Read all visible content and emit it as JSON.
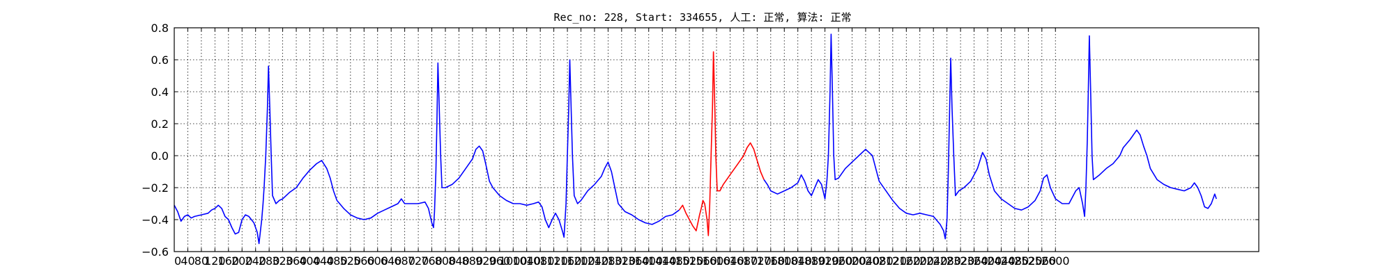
{
  "chart_data": {
    "type": "line",
    "title": "Rec_no: 228, Start: 334655, 人工: 正常, 算法: 正常",
    "xlabel": "",
    "ylabel": "",
    "xlim": [
      0,
      3200
    ],
    "ylim": [
      -0.6,
      0.8
    ],
    "grid": true,
    "yticks": [
      "0.8",
      "0.6",
      "0.4",
      "0.2",
      "0.0",
      "−0.2",
      "−0.4",
      "−0.6"
    ],
    "ytick_values": [
      0.8,
      0.6,
      0.4,
      0.2,
      0.0,
      -0.2,
      -0.4,
      -0.6
    ],
    "xtick_values": [
      0,
      40,
      80,
      120,
      160,
      200,
      240,
      280,
      320,
      360,
      400,
      440,
      480,
      520,
      560,
      600,
      640,
      680,
      720,
      760,
      800,
      840,
      880,
      920,
      960,
      1000,
      1040,
      1080,
      1120,
      1160,
      1200,
      1240,
      1280,
      1320,
      1360,
      1400,
      1440,
      1480,
      1520,
      1560,
      1600,
      1640,
      1680,
      1720,
      1760,
      1800,
      1840,
      1880,
      1920,
      1960,
      2000,
      2040,
      2080,
      2120,
      2160,
      2200,
      2240,
      2280,
      2320,
      2360,
      2400,
      2440,
      2480,
      2520,
      2560,
      2600
    ],
    "series_colors": {
      "main": "#0000ff",
      "highlight": "#ff0000"
    },
    "series": [
      {
        "segment": "before",
        "color": "#0000ff",
        "points": [
          [
            0,
            -0.31
          ],
          [
            10,
            -0.35
          ],
          [
            20,
            -0.41
          ],
          [
            30,
            -0.38
          ],
          [
            40,
            -0.37
          ],
          [
            50,
            -0.39
          ],
          [
            60,
            -0.38
          ],
          [
            80,
            -0.37
          ],
          [
            100,
            -0.36
          ],
          [
            110,
            -0.34
          ],
          [
            120,
            -0.33
          ],
          [
            130,
            -0.31
          ],
          [
            140,
            -0.33
          ],
          [
            150,
            -0.38
          ],
          [
            160,
            -0.4
          ],
          [
            170,
            -0.45
          ],
          [
            180,
            -0.49
          ],
          [
            190,
            -0.48
          ],
          [
            200,
            -0.4
          ],
          [
            210,
            -0.37
          ],
          [
            220,
            -0.38
          ],
          [
            235,
            -0.42
          ],
          [
            245,
            -0.48
          ],
          [
            250,
            -0.55
          ],
          [
            258,
            -0.4
          ],
          [
            262,
            -0.3
          ],
          [
            265,
            -0.2
          ],
          [
            270,
            0.0
          ],
          [
            275,
            0.3
          ],
          [
            278,
            0.56
          ],
          [
            282,
            0.3
          ],
          [
            286,
            0.0
          ],
          [
            290,
            -0.25
          ],
          [
            300,
            -0.3
          ],
          [
            310,
            -0.28
          ],
          [
            320,
            -0.27
          ],
          [
            340,
            -0.23
          ],
          [
            360,
            -0.2
          ],
          [
            380,
            -0.14
          ],
          [
            400,
            -0.09
          ],
          [
            420,
            -0.05
          ],
          [
            435,
            -0.03
          ],
          [
            450,
            -0.08
          ],
          [
            460,
            -0.14
          ],
          [
            470,
            -0.22
          ],
          [
            480,
            -0.28
          ],
          [
            500,
            -0.33
          ],
          [
            520,
            -0.37
          ],
          [
            540,
            -0.39
          ],
          [
            560,
            -0.4
          ],
          [
            580,
            -0.39
          ],
          [
            600,
            -0.36
          ],
          [
            620,
            -0.34
          ],
          [
            640,
            -0.32
          ],
          [
            660,
            -0.3
          ],
          [
            670,
            -0.27
          ],
          [
            680,
            -0.3
          ],
          [
            700,
            -0.3
          ],
          [
            720,
            -0.3
          ],
          [
            740,
            -0.29
          ],
          [
            750,
            -0.33
          ],
          [
            760,
            -0.42
          ],
          [
            765,
            -0.45
          ],
          [
            768,
            -0.35
          ],
          [
            772,
            -0.1
          ],
          [
            775,
            0.2
          ],
          [
            778,
            0.58
          ],
          [
            782,
            0.3
          ],
          [
            786,
            0.0
          ],
          [
            790,
            -0.2
          ],
          [
            800,
            -0.2
          ],
          [
            820,
            -0.18
          ],
          [
            840,
            -0.14
          ],
          [
            860,
            -0.08
          ],
          [
            880,
            -0.02
          ],
          [
            890,
            0.04
          ],
          [
            900,
            0.06
          ],
          [
            910,
            0.03
          ],
          [
            920,
            -0.06
          ],
          [
            930,
            -0.16
          ],
          [
            940,
            -0.2
          ],
          [
            960,
            -0.25
          ],
          [
            980,
            -0.28
          ],
          [
            1000,
            -0.3
          ],
          [
            1020,
            -0.3
          ],
          [
            1040,
            -0.31
          ],
          [
            1060,
            -0.3
          ],
          [
            1075,
            -0.29
          ],
          [
            1085,
            -0.32
          ],
          [
            1095,
            -0.4
          ],
          [
            1105,
            -0.45
          ],
          [
            1115,
            -0.4
          ],
          [
            1125,
            -0.36
          ],
          [
            1135,
            -0.4
          ],
          [
            1145,
            -0.47
          ],
          [
            1150,
            -0.51
          ],
          [
            1156,
            -0.3
          ],
          [
            1160,
            0.0
          ],
          [
            1164,
            0.3
          ],
          [
            1167,
            0.6
          ],
          [
            1171,
            0.3
          ],
          [
            1175,
            0.0
          ],
          [
            1180,
            -0.25
          ],
          [
            1190,
            -0.3
          ],
          [
            1200,
            -0.28
          ],
          [
            1220,
            -0.22
          ],
          [
            1240,
            -0.18
          ],
          [
            1260,
            -0.13
          ],
          [
            1270,
            -0.08
          ],
          [
            1280,
            -0.04
          ],
          [
            1290,
            -0.1
          ],
          [
            1300,
            -0.2
          ],
          [
            1310,
            -0.3
          ],
          [
            1330,
            -0.35
          ],
          [
            1350,
            -0.37
          ],
          [
            1370,
            -0.4
          ],
          [
            1390,
            -0.42
          ],
          [
            1410,
            -0.43
          ],
          [
            1430,
            -0.41
          ],
          [
            1450,
            -0.38
          ],
          [
            1470,
            -0.37
          ],
          [
            1490,
            -0.34
          ]
        ]
      },
      {
        "segment": "highlight",
        "color": "#ff0000",
        "points": [
          [
            1490,
            -0.34
          ],
          [
            1500,
            -0.31
          ],
          [
            1510,
            -0.36
          ],
          [
            1520,
            -0.4
          ],
          [
            1530,
            -0.44
          ],
          [
            1540,
            -0.47
          ],
          [
            1545,
            -0.42
          ],
          [
            1550,
            -0.37
          ],
          [
            1555,
            -0.33
          ],
          [
            1560,
            -0.28
          ],
          [
            1565,
            -0.3
          ],
          [
            1572,
            -0.4
          ],
          [
            1576,
            -0.5
          ],
          [
            1580,
            -0.3
          ],
          [
            1584,
            0.0
          ],
          [
            1588,
            0.3
          ],
          [
            1591,
            0.65
          ],
          [
            1595,
            0.3
          ],
          [
            1598,
            0.0
          ],
          [
            1602,
            -0.22
          ],
          [
            1610,
            -0.22
          ],
          [
            1620,
            -0.18
          ],
          [
            1640,
            -0.12
          ],
          [
            1660,
            -0.06
          ],
          [
            1680,
            0.0
          ],
          [
            1690,
            0.05
          ],
          [
            1700,
            0.08
          ],
          [
            1710,
            0.04
          ],
          [
            1720,
            -0.03
          ],
          [
            1730,
            -0.1
          ],
          [
            1740,
            -0.15
          ]
        ]
      },
      {
        "segment": "after",
        "color": "#0000ff",
        "points": [
          [
            1740,
            -0.15
          ],
          [
            1750,
            -0.18
          ],
          [
            1760,
            -0.22
          ],
          [
            1780,
            -0.24
          ],
          [
            1800,
            -0.22
          ],
          [
            1820,
            -0.2
          ],
          [
            1840,
            -0.17
          ],
          [
            1850,
            -0.12
          ],
          [
            1860,
            -0.16
          ],
          [
            1870,
            -0.22
          ],
          [
            1880,
            -0.25
          ],
          [
            1890,
            -0.2
          ],
          [
            1900,
            -0.15
          ],
          [
            1910,
            -0.18
          ],
          [
            1920,
            -0.27
          ],
          [
            1926,
            -0.15
          ],
          [
            1930,
            0.0
          ],
          [
            1935,
            0.4
          ],
          [
            1938,
            0.76
          ],
          [
            1942,
            0.4
          ],
          [
            1946,
            0.0
          ],
          [
            1950,
            -0.15
          ],
          [
            1960,
            -0.14
          ],
          [
            1980,
            -0.08
          ],
          [
            2000,
            -0.04
          ],
          [
            2020,
            0.0
          ],
          [
            2040,
            0.04
          ],
          [
            2060,
            0.0
          ],
          [
            2070,
            -0.08
          ],
          [
            2080,
            -0.16
          ],
          [
            2100,
            -0.22
          ],
          [
            2120,
            -0.28
          ],
          [
            2140,
            -0.33
          ],
          [
            2160,
            -0.36
          ],
          [
            2180,
            -0.37
          ],
          [
            2200,
            -0.36
          ],
          [
            2220,
            -0.37
          ],
          [
            2240,
            -0.38
          ],
          [
            2260,
            -0.43
          ],
          [
            2270,
            -0.47
          ],
          [
            2275,
            -0.52
          ],
          [
            2280,
            -0.4
          ],
          [
            2284,
            -0.1
          ],
          [
            2288,
            0.3
          ],
          [
            2291,
            0.61
          ],
          [
            2295,
            0.3
          ],
          [
            2300,
            0.0
          ],
          [
            2305,
            -0.25
          ],
          [
            2315,
            -0.22
          ],
          [
            2330,
            -0.2
          ],
          [
            2350,
            -0.16
          ],
          [
            2370,
            -0.08
          ],
          [
            2385,
            0.02
          ],
          [
            2395,
            -0.02
          ],
          [
            2405,
            -0.12
          ],
          [
            2420,
            -0.22
          ],
          [
            2440,
            -0.27
          ],
          [
            2460,
            -0.3
          ],
          [
            2480,
            -0.33
          ],
          [
            2500,
            -0.34
          ],
          [
            2520,
            -0.32
          ],
          [
            2540,
            -0.28
          ],
          [
            2555,
            -0.22
          ],
          [
            2565,
            -0.14
          ],
          [
            2575,
            -0.12
          ],
          [
            2585,
            -0.2
          ],
          [
            2600,
            -0.27
          ],
          [
            2620,
            -0.3
          ],
          [
            2640,
            -0.3
          ],
          [
            2660,
            -0.22
          ],
          [
            2670,
            -0.2
          ],
          [
            2680,
            -0.3
          ],
          [
            2686,
            -0.38
          ],
          [
            2690,
            -0.2
          ],
          [
            2694,
            0.1
          ],
          [
            2697,
            0.4
          ],
          [
            2700,
            0.75
          ],
          [
            2704,
            0.4
          ],
          [
            2708,
            0.0
          ],
          [
            2712,
            -0.15
          ],
          [
            2730,
            -0.12
          ],
          [
            2750,
            -0.08
          ],
          [
            2770,
            -0.05
          ],
          [
            2790,
            0.0
          ],
          [
            2800,
            0.05
          ],
          [
            2820,
            0.1
          ],
          [
            2840,
            0.16
          ],
          [
            2850,
            0.13
          ],
          [
            2860,
            0.06
          ],
          [
            2870,
            0.0
          ],
          [
            2880,
            -0.08
          ],
          [
            2900,
            -0.15
          ],
          [
            2920,
            -0.18
          ],
          [
            2940,
            -0.2
          ],
          [
            2960,
            -0.21
          ],
          [
            2980,
            -0.22
          ],
          [
            3000,
            -0.2
          ],
          [
            3010,
            -0.17
          ],
          [
            3020,
            -0.2
          ],
          [
            3030,
            -0.25
          ],
          [
            3040,
            -0.32
          ],
          [
            3050,
            -0.33
          ],
          [
            3060,
            -0.3
          ],
          [
            3070,
            -0.24
          ],
          [
            3075,
            -0.27
          ]
        ]
      }
    ]
  }
}
